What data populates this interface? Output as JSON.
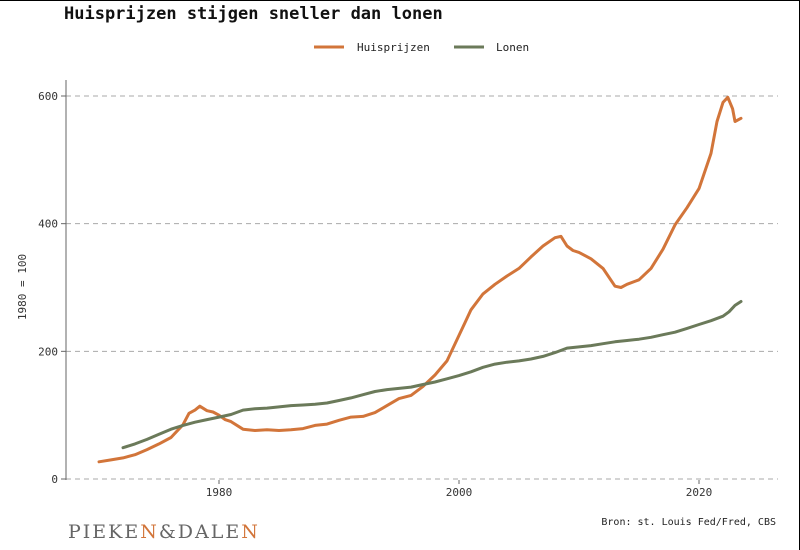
{
  "title": "Huisprijzen stijgen sneller dan lonen",
  "source": "Bron: st. Louis Fed/Fred, CBS",
  "logo": {
    "part1": "PIEKE",
    "n1": "N",
    "amp": "&",
    "part2": "DALE",
    "n2": "N"
  },
  "colors": {
    "huisprijzen": "#d2753a",
    "lonen": "#6b7a5a",
    "grid": "#aaaaaa"
  },
  "chart_data": {
    "type": "line",
    "title": "Huisprijzen stijgen sneller dan lonen",
    "xlabel": "",
    "ylabel": "1980 = 100",
    "xlim": [
      1967,
      2027
    ],
    "ylim": [
      0,
      620
    ],
    "xticks": [
      1980,
      2000,
      2020
    ],
    "yticks": [
      0,
      200,
      400,
      600
    ],
    "grid": "horizontal dashed",
    "legend": "top-center",
    "series": [
      {
        "name": "Huisprijzen",
        "color": "#d2753a",
        "x": [
          1970,
          1971,
          1972,
          1973,
          1974,
          1975,
          1976,
          1977,
          1977.5,
          1978,
          1978.4,
          1979,
          1979.5,
          1980,
          1980.5,
          1981,
          1982,
          1983,
          1984,
          1985,
          1986,
          1987,
          1988,
          1989,
          1990,
          1991,
          1992,
          1993,
          1994,
          1995,
          1996,
          1997,
          1998,
          1999,
          2000,
          2000.5,
          2001,
          2002,
          2003,
          2004,
          2005,
          2006,
          2007,
          2008,
          2008.5,
          2009,
          2009.5,
          2010,
          2011,
          2012,
          2013,
          2013.5,
          2014,
          2015,
          2016,
          2017,
          2018,
          2019,
          2020,
          2021,
          2021.5,
          2022,
          2022.4,
          2022.8,
          2023,
          2023.5
        ],
        "values": [
          27,
          30,
          33,
          38,
          46,
          55,
          65,
          85,
          103,
          108,
          114,
          107,
          105,
          100,
          93,
          90,
          78,
          76,
          77,
          76,
          77,
          79,
          84,
          86,
          92,
          97,
          98,
          104,
          115,
          126,
          131,
          145,
          163,
          185,
          225,
          245,
          265,
          290,
          305,
          318,
          330,
          348,
          365,
          378,
          380,
          365,
          358,
          355,
          345,
          330,
          302,
          300,
          305,
          312,
          330,
          360,
          398,
          425,
          455,
          510,
          560,
          590,
          598,
          580,
          560,
          565
        ]
      },
      {
        "name": "Lonen",
        "color": "#6b7a5a",
        "x": [
          1972,
          1973,
          1974,
          1975,
          1976,
          1977,
          1978,
          1979,
          1980,
          1981,
          1982,
          1983,
          1984,
          1985,
          1986,
          1987,
          1988,
          1989,
          1990,
          1991,
          1992,
          1993,
          1994,
          1995,
          1996,
          1997,
          1998,
          1999,
          2000,
          2001,
          2002,
          2003,
          2004,
          2005,
          2006,
          2007,
          2008,
          2009,
          2010,
          2011,
          2012,
          2013,
          2014,
          2015,
          2016,
          2017,
          2018,
          2019,
          2020,
          2021,
          2022,
          2022.5,
          2023,
          2023.5
        ],
        "values": [
          49,
          55,
          62,
          70,
          78,
          84,
          89,
          93,
          97,
          101,
          108,
          110,
          111,
          113,
          115,
          116,
          117,
          119,
          123,
          127,
          132,
          137,
          140,
          142,
          144,
          148,
          152,
          157,
          162,
          168,
          175,
          180,
          183,
          185,
          188,
          192,
          198,
          205,
          207,
          209,
          212,
          215,
          217,
          219,
          222,
          226,
          230,
          236,
          242,
          248,
          255,
          262,
          272,
          278
        ]
      }
    ]
  }
}
